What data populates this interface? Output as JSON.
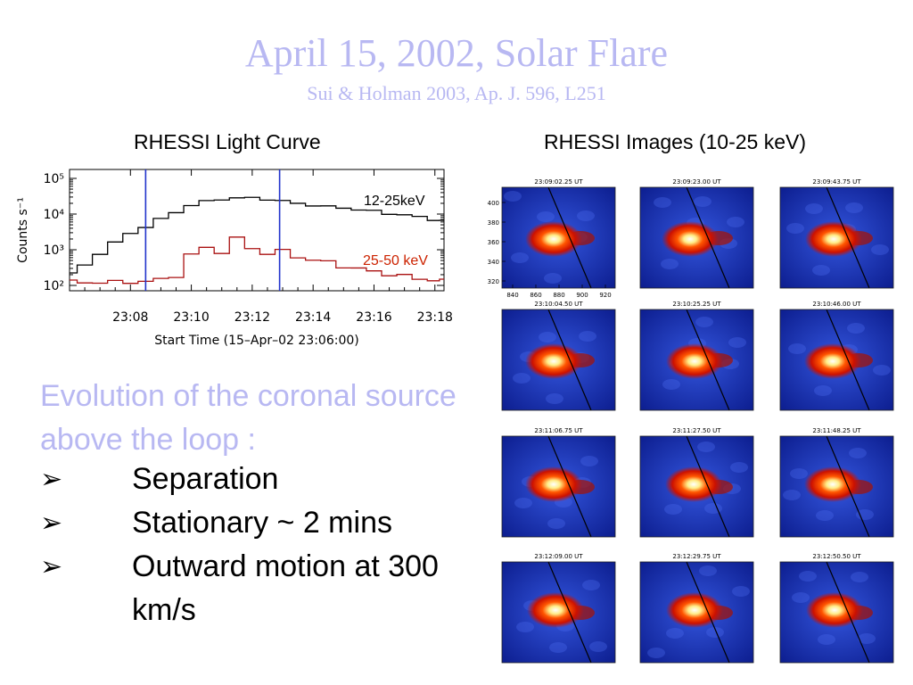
{
  "slide": {
    "title": "April 15, 2002, Solar Flare",
    "subtitle": "Sui & Holman 2003, Ap. J. 596, L251",
    "left_heading": "RHESSI Light Curve",
    "right_heading": "RHESSI Images (10-25 keV)",
    "text_color": "#b8b8f2",
    "evolution_text": "Evolution of the coronal source above the loop :",
    "bullets": [
      {
        "icon": "arrow-bullet-icon",
        "text": "Separation"
      },
      {
        "icon": "arrow-bullet-icon",
        "text": "Stationary ~ 2 mins"
      },
      {
        "icon": "arrow-bullet-icon",
        "text": "Outward motion at 300 km/s"
      }
    ]
  },
  "chart_data": [
    {
      "type": "line",
      "xlabel": "Start Time (15–Apr–02 23:06:00)",
      "ylabel": "Counts s⁻¹",
      "x_ticks": [
        "23:08",
        "23:10",
        "23:12",
        "23:14",
        "23:16",
        "23:18"
      ],
      "y_ticks": [
        "10²",
        "10³",
        "10⁴",
        "10⁵"
      ],
      "xlim_minutes_after_23:06": [
        0,
        12.3
      ],
      "ylim_log10": [
        1.85,
        5.25
      ],
      "y_scale": "log",
      "vertical_markers_minutes_after_23:06": [
        2.5,
        6.9
      ],
      "marker_color": "#2233cc",
      "series": [
        {
          "name": "12-25keV",
          "color": "#000000",
          "x": [
            0,
            0.5,
            1,
            1.5,
            2,
            2.5,
            3,
            3.5,
            4,
            4.5,
            5,
            5.5,
            6,
            6.5,
            7,
            7.5,
            8,
            8.5,
            9,
            9.5,
            10,
            10.5,
            11,
            11.5,
            12,
            12.3
          ],
          "y_log10": [
            2.35,
            2.55,
            2.9,
            3.2,
            3.45,
            3.65,
            3.85,
            4.05,
            4.25,
            4.35,
            4.42,
            4.45,
            4.45,
            4.42,
            4.36,
            4.3,
            4.25,
            4.2,
            4.18,
            4.12,
            4.08,
            4.02,
            3.97,
            3.92,
            3.85,
            3.8
          ]
        },
        {
          "name": "25-50 keV",
          "color": "#aa1111",
          "x": [
            0,
            0.5,
            1,
            1.5,
            2,
            2.5,
            3,
            3.5,
            4,
            4.5,
            5,
            5.5,
            6,
            6.5,
            7,
            7.5,
            8,
            8.5,
            9,
            9.5,
            10,
            10.5,
            11,
            11.5,
            12,
            12.3
          ],
          "y_log10": [
            2.1,
            2.08,
            2.1,
            2.08,
            2.1,
            2.12,
            2.15,
            2.28,
            2.85,
            3.05,
            2.95,
            3.3,
            3.05,
            2.9,
            2.95,
            2.82,
            2.7,
            2.65,
            2.55,
            2.45,
            2.4,
            2.32,
            2.25,
            2.2,
            2.15,
            2.12
          ]
        }
      ]
    },
    {
      "type": "heatmap",
      "title": "RHESSI Images (10-25 keV)",
      "timestamps": [
        "23:09:02.25 UT",
        "23:09:23.00 UT",
        "23:09:43.75 UT",
        "23:10:04.50 UT",
        "23:10:25.25 UT",
        "23:10:46.00 UT",
        "23:11:06.75 UT",
        "23:11:27.50 UT",
        "23:11:48.25 UT",
        "23:12:09.00 UT",
        "23:12:29.75 UT",
        "23:12:50.50 UT"
      ],
      "x_ticks": [
        "840",
        "860",
        "880",
        "900",
        "920"
      ],
      "y_ticks": [
        "400",
        "380",
        "360",
        "340",
        "320"
      ],
      "colormap": [
        "#0a1a8a",
        "#3355dd",
        "#cc1100",
        "#ff5500",
        "#ffee88",
        "#ffffff"
      ]
    }
  ]
}
